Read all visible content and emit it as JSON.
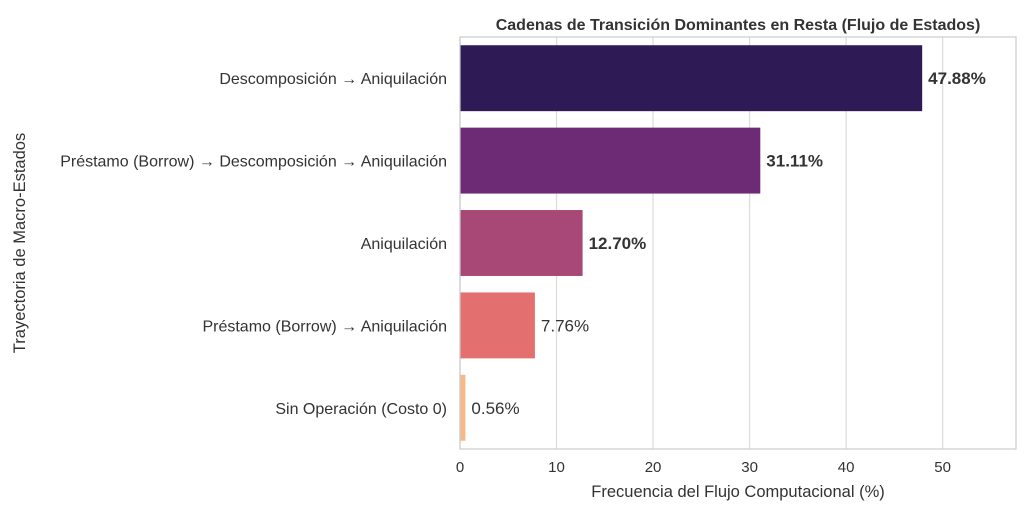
{
  "chart_data": {
    "type": "bar",
    "orientation": "horizontal",
    "title": "Cadenas de Transición Dominantes en Resta (Flujo de Estados)",
    "xlabel": "Frecuencia del Flujo Computacional (%)",
    "ylabel": "Trayectoria de Macro-Estados",
    "categories": [
      "Descomposición → Aniquilación",
      "Préstamo (Borrow) → Descomposición → Aniquilación",
      "Aniquilación",
      "Préstamo (Borrow) → Aniquilación",
      "Sin Operación (Costo 0)"
    ],
    "values": [
      47.88,
      31.11,
      12.7,
      7.76,
      0.56
    ],
    "data_labels": [
      "47.88%",
      "31.11%",
      "12.70%",
      "7.76%",
      "0.56%"
    ],
    "label_bold": [
      true,
      true,
      true,
      false,
      false
    ],
    "colors": [
      "#2e1a55",
      "#6c2b74",
      "#a84876",
      "#e3706e",
      "#f7b98a"
    ],
    "xlim": [
      0,
      57.6
    ],
    "xticks": [
      0,
      10,
      20,
      30,
      40,
      50
    ],
    "grid": "vertical"
  }
}
